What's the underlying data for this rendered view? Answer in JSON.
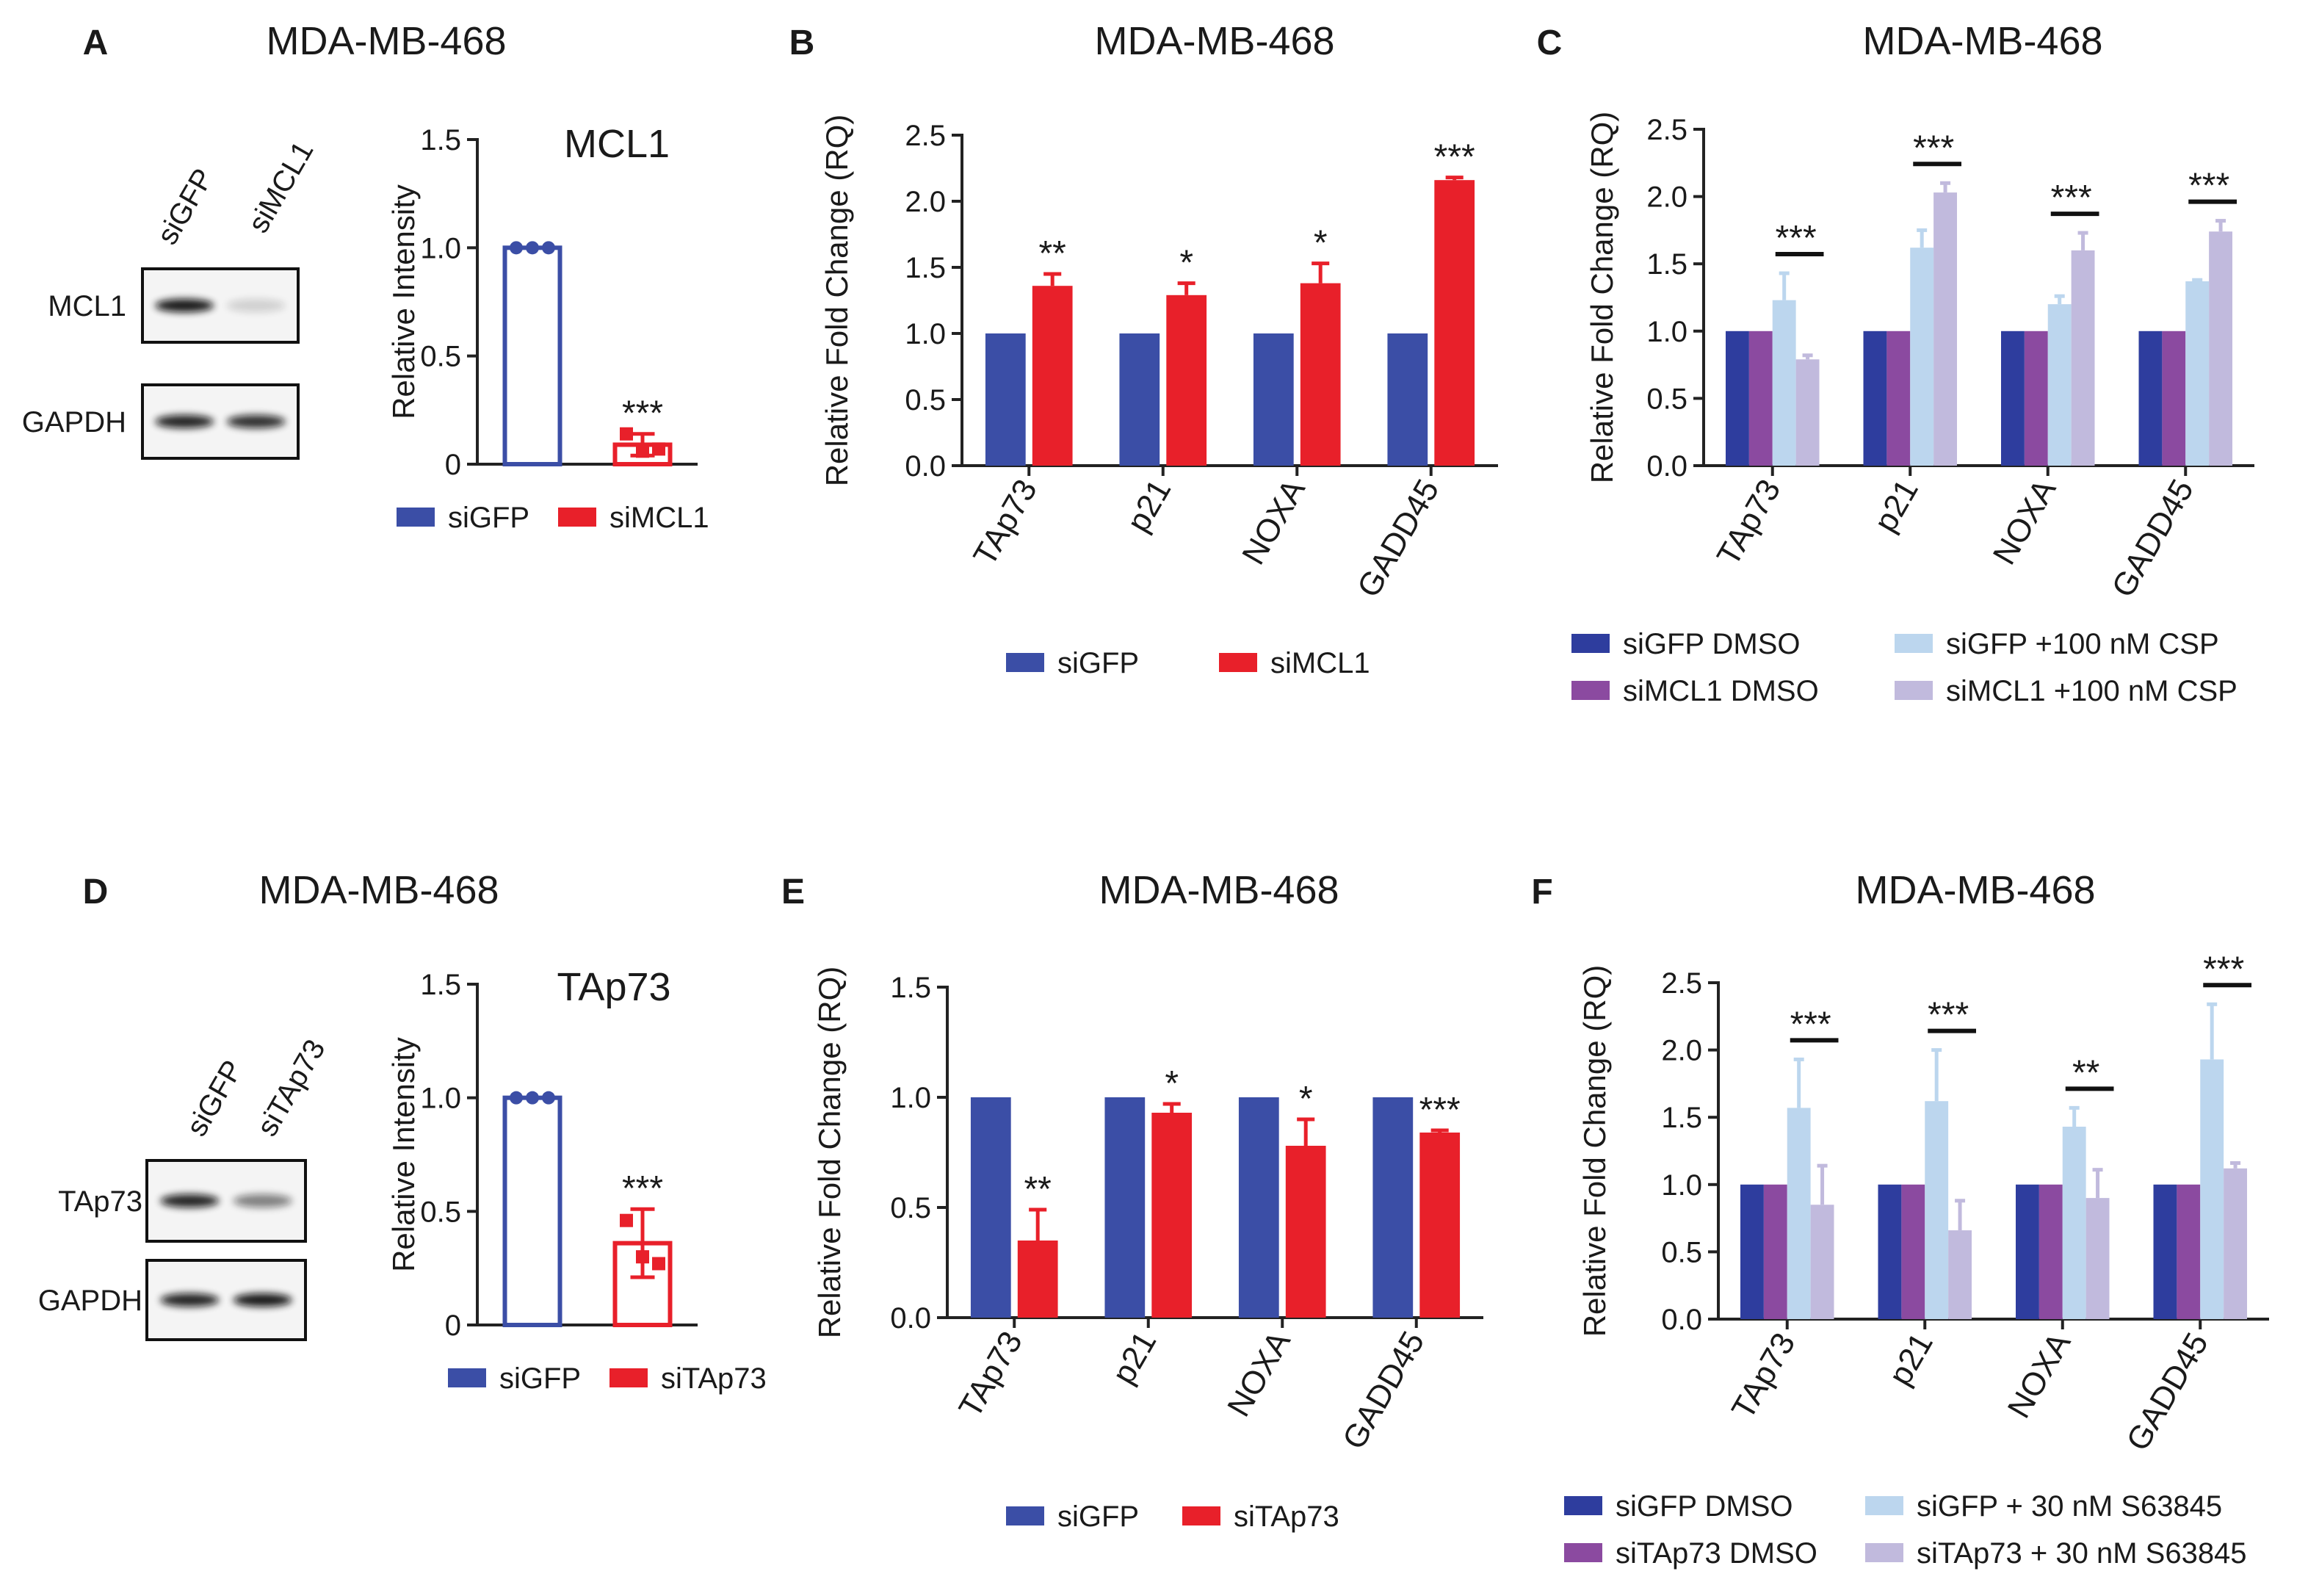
{
  "panels": [
    {
      "letter": "A",
      "title": "MDA-MB-468"
    },
    {
      "letter": "B",
      "title": "MDA-MB-468"
    },
    {
      "letter": "C",
      "title": "MDA-MB-468"
    },
    {
      "letter": "D",
      "title": "MDA-MB-468"
    },
    {
      "letter": "E",
      "title": "MDA-MB-468"
    },
    {
      "letter": "F",
      "title": "MDA-MB-468"
    }
  ],
  "blots": [
    {
      "lanes": [
        "siGFP",
        "siMCL1"
      ],
      "rows": [
        "MCL1",
        "GAPDH"
      ]
    },
    {
      "lanes": [
        "siGFP",
        "siTAp73"
      ],
      "rows": [
        "TAp73",
        "GAPDH"
      ]
    }
  ],
  "chart_data": [
    {
      "type": "bar",
      "title": "MCL1",
      "y_label": "Relative Intensity",
      "bar_style": "outline",
      "error_direction": "both",
      "ylim": [
        0,
        1.5
      ],
      "yticks": [
        0,
        0.5,
        {
          "value": 1,
          "label": "1.0"
        },
        1.5
      ],
      "series": [
        {
          "name": "siGFP",
          "color": "#3b4ea6",
          "values": [
            1.0
          ],
          "points": [
            1,
            1,
            1
          ]
        },
        {
          "name": "siMCL1",
          "color": "#e8202a",
          "values": [
            0.09
          ],
          "errors": [
            0.05
          ],
          "points": [
            0.14,
            0.06,
            0.07
          ],
          "significance": [
            "***"
          ]
        }
      ]
    },
    {
      "type": "bar",
      "y_label": "Relative Fold Change (RQ)",
      "bar_style": "solid",
      "error_direction": "up",
      "categories": [
        "TAp73",
        "p21",
        "NOXA",
        "GADD45"
      ],
      "ylim": [
        0,
        2.5
      ],
      "yticks": [
        {
          "value": 0,
          "label": "0.0"
        },
        0.5,
        {
          "value": 1,
          "label": "1.0"
        },
        1.5,
        {
          "value": 2,
          "label": "2.0"
        },
        2.5
      ],
      "series": [
        {
          "name": "siGFP",
          "color": "#3b4ea6",
          "values": [
            1,
            1,
            1,
            1
          ]
        },
        {
          "name": "siMCL1",
          "color": "#e8202a",
          "values": [
            1.36,
            1.29,
            1.38,
            2.16
          ],
          "errors": [
            0.09,
            0.09,
            0.15,
            0.02
          ],
          "significance": [
            "**",
            "*",
            "*",
            "***"
          ]
        }
      ]
    },
    {
      "type": "bar",
      "y_label": "Relative Fold Change (RQ)",
      "bar_style": "solid",
      "error_direction": "up",
      "categories": [
        "TAp73",
        "p21",
        "NOXA",
        "GADD45"
      ],
      "ylim": [
        0,
        2.5
      ],
      "yticks": [
        {
          "value": 0,
          "label": "0.0"
        },
        0.5,
        {
          "value": 1,
          "label": "1.0"
        },
        1.5,
        {
          "value": 2,
          "label": "2.0"
        },
        2.5
      ],
      "series": [
        {
          "name": "siGFP DMSO",
          "color": "#2e3d9e",
          "values": [
            1,
            1,
            1,
            1
          ]
        },
        {
          "name": "siMCL1 DMSO",
          "color": "#8b4aa0",
          "values": [
            1,
            1,
            1,
            1
          ]
        },
        {
          "name": "siGFP +100 nM CSP",
          "color": "#bcd6ee",
          "values": [
            1.23,
            1.62,
            1.2,
            1.37
          ],
          "errors": [
            0.2,
            0.13,
            0.06,
            0.01
          ]
        },
        {
          "name": "siMCL1 +100 nM CSP",
          "color": "#c1badd",
          "values": [
            0.79,
            2.03,
            1.6,
            1.74
          ],
          "errors": [
            0.03,
            0.07,
            0.13,
            0.08
          ]
        }
      ],
      "bracket_labels": [
        "***",
        "***",
        "***",
        "***"
      ]
    },
    {
      "type": "bar",
      "title": "TAp73",
      "y_label": "Relative Intensity",
      "bar_style": "outline",
      "error_direction": "both",
      "ylim": [
        0,
        1.5
      ],
      "yticks": [
        0,
        0.5,
        {
          "value": 1,
          "label": "1.0"
        },
        1.5
      ],
      "series": [
        {
          "name": "siGFP",
          "color": "#3b4ea6",
          "values": [
            1.0
          ],
          "points": [
            1,
            1,
            1
          ]
        },
        {
          "name": "siTAp73",
          "color": "#e8202a",
          "values": [
            0.36
          ],
          "errors": [
            0.15
          ],
          "points": [
            0.46,
            0.3,
            0.27
          ],
          "significance": [
            "***"
          ]
        }
      ]
    },
    {
      "type": "bar",
      "y_label": "Relative Fold Change (RQ)",
      "bar_style": "solid",
      "error_direction": "up",
      "categories": [
        "TAp73",
        "p21",
        "NOXA",
        "GADD45"
      ],
      "ylim": [
        0,
        1.5
      ],
      "yticks": [
        {
          "value": 0,
          "label": "0.0"
        },
        0.5,
        {
          "value": 1,
          "label": "1.0"
        },
        1.5
      ],
      "series": [
        {
          "name": "siGFP",
          "color": "#3b4ea6",
          "values": [
            1,
            1,
            1,
            1
          ]
        },
        {
          "name": "siTAp73",
          "color": "#e8202a",
          "values": [
            0.35,
            0.93,
            0.78,
            0.84
          ],
          "errors": [
            0.14,
            0.04,
            0.12,
            0.01
          ],
          "significance": [
            "**",
            "*",
            "*",
            "***"
          ]
        }
      ]
    },
    {
      "type": "bar",
      "y_label": "Relative Fold Change (RQ)",
      "bar_style": "solid",
      "error_direction": "up",
      "categories": [
        "TAp73",
        "p21",
        "NOXA",
        "GADD45"
      ],
      "ylim": [
        0,
        2.5
      ],
      "yticks": [
        {
          "value": 0,
          "label": "0.0"
        },
        0.5,
        {
          "value": 1,
          "label": "1.0"
        },
        1.5,
        {
          "value": 2,
          "label": "2.0"
        },
        2.5
      ],
      "series": [
        {
          "name": "siGFP DMSO",
          "color": "#2e3d9e",
          "values": [
            1,
            1,
            1,
            1
          ]
        },
        {
          "name": "siTAp73 DMSO",
          "color": "#8b4aa0",
          "values": [
            1,
            1,
            1,
            1
          ]
        },
        {
          "name": "siGFP + 30 nM S63845",
          "color": "#bcd6ee",
          "values": [
            1.57,
            1.62,
            1.43,
            1.93
          ],
          "errors": [
            0.36,
            0.38,
            0.14,
            0.41
          ]
        },
        {
          "name": "siTAp73 + 30 nM S63845",
          "color": "#c1badd",
          "values": [
            0.85,
            0.66,
            0.9,
            1.12
          ],
          "errors": [
            0.29,
            0.22,
            0.21,
            0.04
          ]
        }
      ],
      "bracket_labels": [
        "***",
        "***",
        "**",
        "***"
      ]
    }
  ]
}
